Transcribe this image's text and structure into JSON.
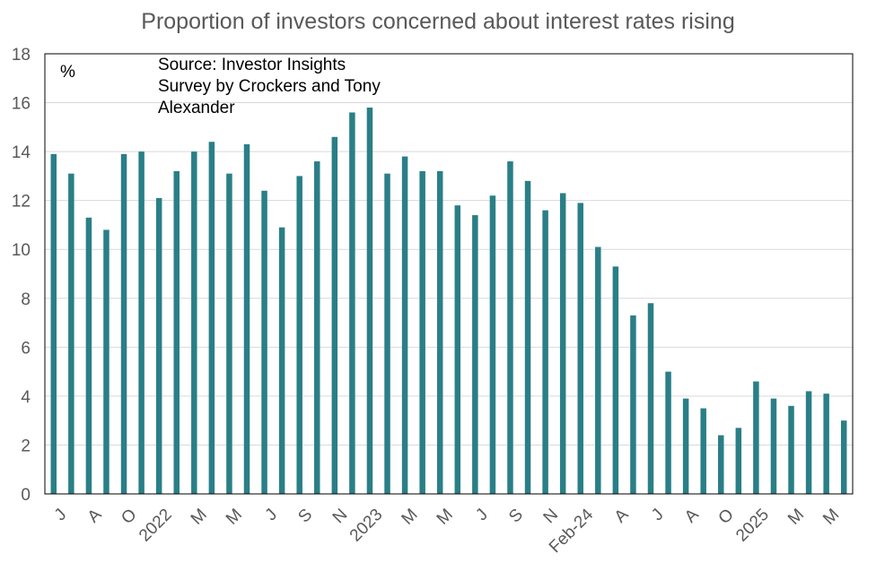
{
  "chart_data": {
    "type": "bar",
    "title": "Proportion of investors concerned about interest rates rising",
    "unit_label": "%",
    "annotation": [
      "Source: Investor Insights",
      "Survey by Crockers and Tony",
      "Alexander"
    ],
    "ylim": [
      0,
      18
    ],
    "yticks": [
      0,
      2,
      4,
      6,
      8,
      10,
      12,
      14,
      16,
      18
    ],
    "grid": true,
    "bar_color": "#2a7f87",
    "categories": [
      "J",
      "",
      "A",
      "",
      "O",
      "",
      "2022",
      "",
      "M",
      "",
      "M",
      "",
      "J",
      "",
      "S",
      "",
      "N",
      "",
      "2023",
      "",
      "M",
      "",
      "M",
      "",
      "J",
      "",
      "S",
      "",
      "N",
      "",
      "Feb-24",
      "",
      "A",
      "",
      "J",
      "",
      "A",
      "",
      "O",
      "",
      "2025",
      "",
      "M",
      "",
      "M",
      ""
    ],
    "values": [
      13.9,
      13.1,
      11.3,
      10.8,
      13.9,
      14.0,
      12.1,
      13.2,
      14.0,
      14.4,
      13.1,
      14.3,
      12.4,
      10.9,
      13.0,
      13.6,
      14.6,
      15.6,
      15.8,
      13.1,
      13.8,
      13.2,
      13.2,
      11.8,
      11.4,
      12.2,
      13.6,
      12.8,
      11.6,
      12.3,
      11.9,
      10.1,
      9.3,
      7.3,
      7.8,
      5.0,
      3.9,
      3.5,
      2.4,
      2.7,
      4.6,
      3.9,
      3.6,
      4.2,
      4.1,
      3.0
    ]
  }
}
